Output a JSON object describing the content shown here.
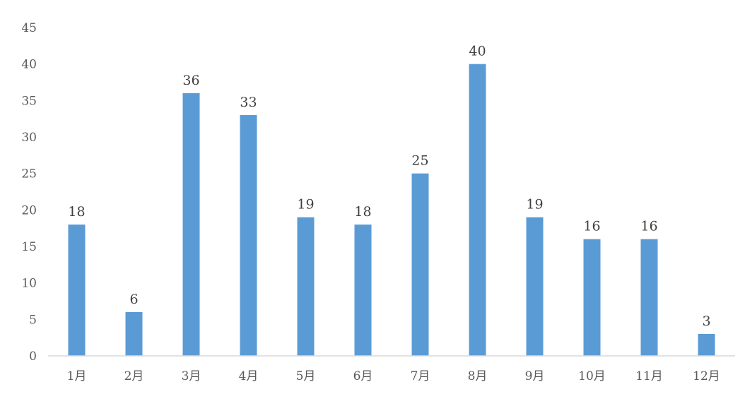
{
  "chart_data": {
    "type": "bar",
    "title": "",
    "xlabel": "",
    "ylabel": "",
    "categories": [
      "1月",
      "2月",
      "3月",
      "4月",
      "5月",
      "6月",
      "7月",
      "8月",
      "9月",
      "10月",
      "11月",
      "12月"
    ],
    "values": [
      18,
      6,
      36,
      33,
      19,
      18,
      25,
      40,
      19,
      16,
      16,
      3
    ],
    "ylim": [
      0,
      45
    ],
    "yticks": [
      0,
      5,
      10,
      15,
      20,
      25,
      30,
      35,
      40,
      45
    ],
    "grid": false,
    "legend": "none",
    "data_labels": true,
    "colors": {
      "bar": "#5B9BD5",
      "axis": "#D9D9D9"
    }
  }
}
